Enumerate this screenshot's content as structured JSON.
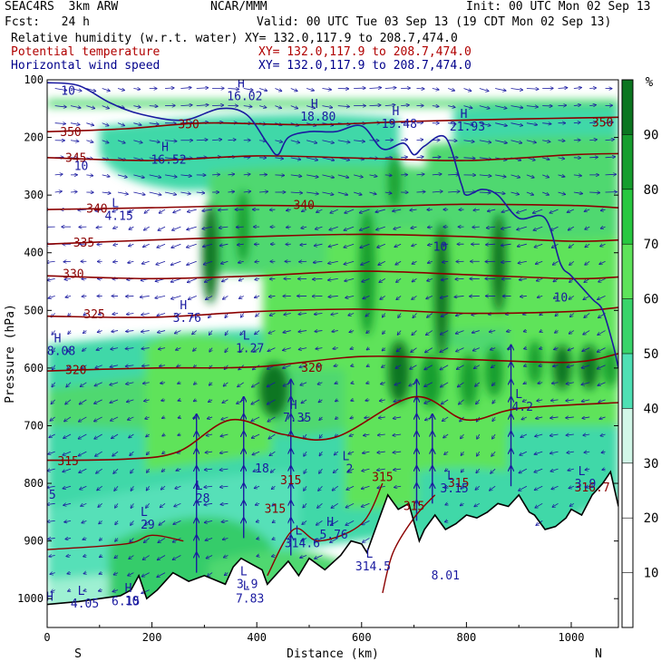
{
  "header": {
    "model": "SEAC4RS  3km ARW",
    "org": "NCAR/MMM",
    "init": "Init: 00 UTC Mon 02 Sep 13",
    "fcst": "Fcst:   24 h",
    "valid": "Valid: 00 UTC Tue 03 Sep 13 (19 CDT Mon 02 Sep 13)"
  },
  "fields": [
    {
      "label": "Relative humidity (w.r.t. water)",
      "xy": "XY= 132.0,117.9 to 208.7,474.0",
      "color": "#000000"
    },
    {
      "label": "Potential temperature",
      "xy": "XY= 132.0,117.9 to 208.7,474.0",
      "color": "#b00000"
    },
    {
      "label": "Horizontal wind speed",
      "xy": "XY= 132.0,117.9 to 208.7,474.0",
      "color": "#00008b"
    }
  ],
  "chart_data": {
    "type": "heatmap",
    "xlabel": "Distance (km)",
    "ylabel": "Pressure (hPa)",
    "xlim": [
      0,
      1090
    ],
    "ylim": [
      1050,
      100
    ],
    "x_ticks": [
      0,
      200,
      400,
      600,
      800,
      1000
    ],
    "x_tick_labels": [
      "0",
      "200",
      "400",
      "600",
      "800",
      "1000"
    ],
    "y_ticks": [
      100,
      200,
      300,
      400,
      500,
      600,
      700,
      800,
      900,
      1000
    ],
    "y_tick_labels": [
      "100",
      "200",
      "300",
      "400",
      "500",
      "600",
      "700",
      "800",
      "900",
      "1000"
    ],
    "x_end_labels": {
      "left": "S",
      "right": "N"
    },
    "colorbar": {
      "unit": "%",
      "levels": [
        10,
        20,
        30,
        40,
        50,
        60,
        70,
        80,
        90
      ],
      "level_labels": [
        "10",
        "20",
        "30",
        "40",
        "50",
        "60",
        "70",
        "80",
        "90"
      ],
      "colors": [
        "#ffffff",
        "#ffffff",
        "#ffffff",
        "#d2f7e8",
        "#4fe0b4",
        "#39d46a",
        "#5ee35a",
        "#28c840",
        "#169e2e",
        "#0b7620"
      ]
    },
    "theta_isolines": [
      {
        "label": "350",
        "p": [
          [
            0,
            190
          ],
          [
            150,
            185
          ],
          [
            300,
            175
          ],
          [
            500,
            178
          ],
          [
            700,
            172
          ],
          [
            900,
            168
          ],
          [
            1090,
            165
          ]
        ]
      },
      {
        "label": "345",
        "p": [
          [
            0,
            235
          ],
          [
            200,
            240
          ],
          [
            400,
            232
          ],
          [
            600,
            236
          ],
          [
            800,
            240
          ],
          [
            1000,
            230
          ],
          [
            1090,
            228
          ]
        ]
      },
      {
        "label": "340",
        "p": [
          [
            0,
            325
          ],
          [
            200,
            322
          ],
          [
            400,
            318
          ],
          [
            600,
            320
          ],
          [
            800,
            316
          ],
          [
            1000,
            318
          ],
          [
            1090,
            322
          ]
        ]
      },
      {
        "label": "335",
        "p": [
          [
            0,
            385
          ],
          [
            200,
            378
          ],
          [
            400,
            372
          ],
          [
            600,
            368
          ],
          [
            800,
            372
          ],
          [
            1000,
            380
          ],
          [
            1090,
            378
          ]
        ]
      },
      {
        "label": "330",
        "p": [
          [
            0,
            440
          ],
          [
            200,
            445
          ],
          [
            400,
            440
          ],
          [
            600,
            432
          ],
          [
            800,
            438
          ],
          [
            1000,
            445
          ],
          [
            1090,
            442
          ]
        ]
      },
      {
        "label": "325",
        "p": [
          [
            0,
            510
          ],
          [
            200,
            512
          ],
          [
            400,
            502
          ],
          [
            600,
            498
          ],
          [
            800,
            505
          ],
          [
            1000,
            502
          ],
          [
            1090,
            495
          ]
        ]
      },
      {
        "label": "320",
        "p": [
          [
            0,
            605
          ],
          [
            200,
            600
          ],
          [
            400,
            598
          ],
          [
            600,
            580
          ],
          [
            800,
            585
          ],
          [
            1000,
            590
          ],
          [
            1090,
            575
          ]
        ]
      },
      {
        "label": "315",
        "p": [
          [
            0,
            760
          ],
          [
            150,
            758
          ],
          [
            250,
            745
          ],
          [
            350,
            690
          ],
          [
            450,
            715
          ],
          [
            550,
            720
          ],
          [
            700,
            650
          ],
          [
            800,
            690
          ],
          [
            900,
            670
          ],
          [
            1090,
            660
          ]
        ]
      }
    ],
    "isoline_labels": [
      {
        "text": "10",
        "x": 40,
        "p": 120
      },
      {
        "text": "350",
        "x": 45,
        "p": 191
      },
      {
        "text": "345",
        "x": 55,
        "p": 236
      },
      {
        "text": "10",
        "x": 65,
        "p": 250
      },
      {
        "text": "340",
        "x": 95,
        "p": 324
      },
      {
        "text": "335",
        "x": 70,
        "p": 383
      },
      {
        "text": "330",
        "x": 50,
        "p": 437
      },
      {
        "text": "325",
        "x": 90,
        "p": 507
      },
      {
        "text": "320",
        "x": 55,
        "p": 604
      },
      {
        "text": "315",
        "x": 40,
        "p": 762
      },
      {
        "text": "350",
        "x": 270,
        "p": 178
      },
      {
        "text": "340",
        "x": 490,
        "p": 318
      },
      {
        "text": "320",
        "x": 505,
        "p": 600
      },
      {
        "text": "350",
        "x": 1060,
        "p": 175
      },
      {
        "text": "10",
        "x": 750,
        "p": 390
      },
      {
        "text": "10",
        "x": 980,
        "p": 478
      },
      {
        "text": "5",
        "x": 10,
        "p": 820
      },
      {
        "text": "18",
        "x": 410,
        "p": 775
      },
      {
        "text": "315",
        "x": 465,
        "p": 795
      },
      {
        "text": "315",
        "x": 435,
        "p": 845
      },
      {
        "text": "315",
        "x": 640,
        "p": 790
      },
      {
        "text": "315",
        "x": 700,
        "p": 840
      },
      {
        "text": "315",
        "x": 785,
        "p": 800
      },
      {
        "text": "316.7",
        "x": 1040,
        "p": 808
      },
      {
        "text": "8.01",
        "x": 760,
        "p": 960
      },
      {
        "text": "6.15",
        "x": 150,
        "p": 1005
      }
    ],
    "extrema": [
      {
        "type": "H",
        "value": "16.02",
        "x": 370,
        "p": 120
      },
      {
        "type": "H",
        "value": "18.80",
        "x": 510,
        "p": 155
      },
      {
        "type": "H",
        "value": "19.48",
        "x": 665,
        "p": 168
      },
      {
        "type": "H",
        "value": "21.93",
        "x": 795,
        "p": 172
      },
      {
        "type": "H",
        "value": "16.52",
        "x": 225,
        "p": 230
      },
      {
        "type": "L",
        "value": "4.15",
        "x": 130,
        "p": 327
      },
      {
        "type": "H",
        "value": "3.76",
        "x": 260,
        "p": 504
      },
      {
        "type": "H",
        "value": "8.08",
        "x": 20,
        "p": 562
      },
      {
        "type": "L",
        "value": "1.27",
        "x": 380,
        "p": 557
      },
      {
        "type": "H",
        "value": "7.35",
        "x": 470,
        "p": 677
      },
      {
        "type": "L",
        "value": "4.2",
        "x": 900,
        "p": 658
      },
      {
        "type": "L",
        "value": "2",
        "x": 570,
        "p": 766
      },
      {
        "type": "L",
        "value": "3.15",
        "x": 770,
        "p": 800
      },
      {
        "type": "L",
        "value": "3.9",
        "x": 1020,
        "p": 792
      },
      {
        "type": "L",
        "value": "28",
        "x": 290,
        "p": 817
      },
      {
        "type": "L",
        "value": "29",
        "x": 185,
        "p": 863
      },
      {
        "type": "H",
        "value": "5.76",
        "x": 540,
        "p": 880
      },
      {
        "type": "L",
        "value": "314.6",
        "x": 480,
        "p": 895
      },
      {
        "type": "L",
        "value": "314.5",
        "x": 615,
        "p": 935
      },
      {
        "type": "L",
        "value": "3.9",
        "x": 375,
        "p": 966
      },
      {
        "type": "L",
        "value": "7.83",
        "x": 380,
        "p": 991
      },
      {
        "type": "L",
        "value": "4.05",
        "x": 65,
        "p": 1000
      },
      {
        "type": "H",
        "value": "10",
        "x": 155,
        "p": 995
      },
      {
        "type": "H",
        "value": "",
        "x": 5,
        "p": 1010
      }
    ],
    "terrain": [
      [
        0,
        1010
      ],
      [
        60,
        1005
      ],
      [
        100,
        1000
      ],
      [
        140,
        995
      ],
      [
        160,
        985
      ],
      [
        175,
        960
      ],
      [
        190,
        1000
      ],
      [
        210,
        985
      ],
      [
        240,
        955
      ],
      [
        270,
        970
      ],
      [
        300,
        960
      ],
      [
        340,
        975
      ],
      [
        355,
        945
      ],
      [
        370,
        930
      ],
      [
        390,
        940
      ],
      [
        410,
        950
      ],
      [
        420,
        975
      ],
      [
        440,
        955
      ],
      [
        460,
        935
      ],
      [
        480,
        960
      ],
      [
        500,
        930
      ],
      [
        530,
        950
      ],
      [
        560,
        925
      ],
      [
        580,
        900
      ],
      [
        600,
        905
      ],
      [
        610,
        920
      ],
      [
        630,
        870
      ],
      [
        650,
        820
      ],
      [
        670,
        845
      ],
      [
        690,
        835
      ],
      [
        710,
        900
      ],
      [
        720,
        880
      ],
      [
        740,
        855
      ],
      [
        760,
        880
      ],
      [
        780,
        870
      ],
      [
        800,
        855
      ],
      [
        820,
        860
      ],
      [
        840,
        850
      ],
      [
        860,
        835
      ],
      [
        880,
        840
      ],
      [
        900,
        820
      ],
      [
        920,
        850
      ],
      [
        930,
        855
      ],
      [
        950,
        880
      ],
      [
        970,
        875
      ],
      [
        990,
        860
      ],
      [
        1000,
        845
      ],
      [
        1020,
        855
      ],
      [
        1040,
        820
      ],
      [
        1060,
        800
      ],
      [
        1075,
        780
      ],
      [
        1090,
        840
      ]
    ],
    "wind_speed_isoline": [
      [
        0,
        105
      ],
      [
        60,
        110
      ],
      [
        120,
        140
      ],
      [
        180,
        160
      ],
      [
        260,
        170
      ],
      [
        330,
        150
      ],
      [
        380,
        160
      ],
      [
        420,
        210
      ],
      [
        440,
        230
      ],
      [
        460,
        200
      ],
      [
        500,
        190
      ],
      [
        550,
        190
      ],
      [
        600,
        180
      ],
      [
        640,
        220
      ],
      [
        680,
        210
      ],
      [
        700,
        230
      ],
      [
        720,
        215
      ],
      [
        760,
        200
      ],
      [
        790,
        280
      ],
      [
        800,
        300
      ],
      [
        830,
        290
      ],
      [
        860,
        300
      ],
      [
        900,
        340
      ],
      [
        950,
        340
      ],
      [
        980,
        420
      ],
      [
        1000,
        440
      ],
      [
        1040,
        480
      ],
      [
        1060,
        500
      ],
      [
        1080,
        560
      ],
      [
        1090,
        600
      ]
    ]
  }
}
